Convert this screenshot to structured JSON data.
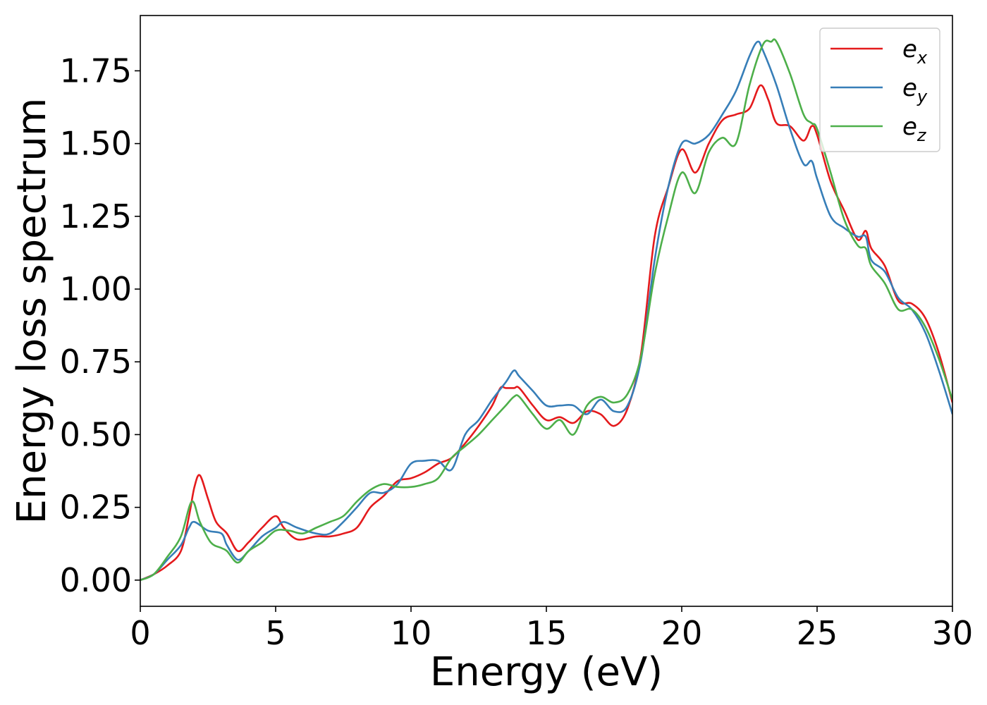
{
  "chart_data": {
    "type": "line",
    "xlabel": "Energy (eV)",
    "ylabel": "Energy loss spectrum",
    "xlim": [
      0,
      30
    ],
    "ylim": [
      -0.09,
      1.94
    ],
    "xticks": [
      0,
      5,
      10,
      15,
      20,
      25,
      30
    ],
    "xtick_labels": [
      "0",
      "5",
      "10",
      "15",
      "20",
      "25",
      "30"
    ],
    "yticks": [
      0,
      0.25,
      0.5,
      0.75,
      1.0,
      1.25,
      1.5,
      1.75
    ],
    "ytick_labels": [
      "0.00",
      "0.25",
      "0.50",
      "0.75",
      "1.00",
      "1.25",
      "1.50",
      "1.75"
    ],
    "grid": false,
    "legend_position": "top-right",
    "series": [
      {
        "name": "e_x",
        "legend_main": "e",
        "legend_sub": "x",
        "color": "#e41a1c",
        "x": [
          0,
          0.5,
          1.0,
          1.5,
          1.8,
          2.0,
          2.2,
          2.5,
          2.8,
          3.2,
          3.6,
          4.0,
          4.5,
          5.0,
          5.3,
          5.8,
          6.5,
          7.0,
          7.5,
          8.0,
          8.5,
          9.0,
          9.5,
          10.0,
          10.5,
          11.0,
          11.5,
          12.0,
          12.5,
          13.0,
          13.3,
          13.5,
          13.8,
          14.0,
          14.5,
          15.0,
          15.5,
          16.0,
          16.5,
          17.0,
          17.5,
          18.0,
          18.5,
          19.0,
          19.5,
          20.0,
          20.5,
          21.0,
          21.5,
          22.0,
          22.5,
          22.9,
          23.2,
          23.5,
          24.0,
          24.5,
          24.8,
          25.0,
          25.5,
          26.0,
          26.5,
          26.8,
          27.0,
          27.5,
          28.0,
          28.5,
          29.0,
          29.5,
          30.0
        ],
        "y": [
          0.0,
          0.02,
          0.05,
          0.1,
          0.22,
          0.32,
          0.36,
          0.28,
          0.2,
          0.16,
          0.1,
          0.13,
          0.18,
          0.22,
          0.18,
          0.14,
          0.15,
          0.15,
          0.16,
          0.18,
          0.25,
          0.29,
          0.34,
          0.35,
          0.37,
          0.4,
          0.42,
          0.47,
          0.53,
          0.6,
          0.66,
          0.66,
          0.66,
          0.66,
          0.6,
          0.55,
          0.56,
          0.54,
          0.58,
          0.57,
          0.53,
          0.59,
          0.78,
          1.18,
          1.35,
          1.48,
          1.4,
          1.5,
          1.58,
          1.6,
          1.62,
          1.7,
          1.65,
          1.57,
          1.56,
          1.51,
          1.56,
          1.53,
          1.37,
          1.27,
          1.17,
          1.2,
          1.14,
          1.08,
          0.96,
          0.95,
          0.9,
          0.78,
          0.61
        ]
      },
      {
        "name": "e_y",
        "legend_main": "e",
        "legend_sub": "y",
        "color": "#377eb8",
        "x": [
          0,
          0.5,
          1.0,
          1.5,
          1.8,
          2.0,
          2.5,
          3.0,
          3.2,
          3.6,
          4.0,
          4.5,
          5.0,
          5.3,
          5.8,
          6.5,
          7.0,
          7.5,
          8.0,
          8.5,
          9.0,
          9.5,
          10.0,
          10.5,
          11.0,
          11.5,
          12.0,
          12.5,
          13.0,
          13.5,
          13.8,
          14.0,
          14.5,
          15.0,
          15.5,
          16.0,
          16.5,
          17.0,
          17.5,
          18.0,
          18.5,
          19.0,
          19.5,
          20.0,
          20.5,
          21.0,
          21.5,
          22.0,
          22.5,
          22.8,
          23.0,
          23.5,
          24.0,
          24.5,
          24.8,
          25.0,
          25.5,
          26.0,
          26.5,
          26.8,
          27.0,
          27.5,
          28.0,
          28.5,
          29.0,
          29.5,
          30.0
        ],
        "y": [
          0.0,
          0.02,
          0.07,
          0.12,
          0.18,
          0.2,
          0.17,
          0.16,
          0.12,
          0.07,
          0.1,
          0.15,
          0.18,
          0.2,
          0.18,
          0.16,
          0.16,
          0.2,
          0.25,
          0.3,
          0.3,
          0.33,
          0.4,
          0.41,
          0.41,
          0.38,
          0.5,
          0.55,
          0.62,
          0.68,
          0.72,
          0.7,
          0.65,
          0.6,
          0.6,
          0.6,
          0.57,
          0.62,
          0.58,
          0.6,
          0.76,
          1.1,
          1.35,
          1.5,
          1.5,
          1.53,
          1.6,
          1.68,
          1.8,
          1.85,
          1.82,
          1.7,
          1.55,
          1.43,
          1.44,
          1.38,
          1.25,
          1.21,
          1.18,
          1.18,
          1.1,
          1.06,
          0.97,
          0.93,
          0.85,
          0.72,
          0.57
        ]
      },
      {
        "name": "e_z",
        "legend_main": "e",
        "legend_sub": "z",
        "color": "#4daf4a",
        "x": [
          0,
          0.5,
          1.0,
          1.5,
          1.9,
          2.2,
          2.6,
          3.0,
          3.2,
          3.6,
          4.0,
          4.5,
          5.0,
          5.5,
          6.0,
          6.5,
          7.0,
          7.5,
          8.0,
          8.5,
          9.0,
          9.5,
          10.0,
          10.5,
          11.0,
          11.5,
          12.0,
          12.5,
          13.0,
          13.5,
          13.8,
          14.0,
          14.5,
          15.0,
          15.5,
          16.0,
          16.5,
          17.0,
          17.5,
          18.0,
          18.5,
          19.0,
          19.5,
          20.0,
          20.5,
          21.0,
          21.5,
          22.0,
          22.5,
          23.0,
          23.3,
          23.5,
          24.0,
          24.5,
          24.8,
          25.0,
          25.5,
          26.0,
          26.5,
          26.8,
          27.0,
          27.5,
          28.0,
          28.5,
          29.0,
          29.5,
          30.0
        ],
        "y": [
          0.0,
          0.02,
          0.08,
          0.15,
          0.27,
          0.2,
          0.13,
          0.11,
          0.1,
          0.06,
          0.1,
          0.13,
          0.17,
          0.17,
          0.16,
          0.18,
          0.2,
          0.22,
          0.27,
          0.31,
          0.33,
          0.32,
          0.32,
          0.33,
          0.35,
          0.42,
          0.46,
          0.5,
          0.55,
          0.6,
          0.63,
          0.63,
          0.57,
          0.52,
          0.55,
          0.5,
          0.6,
          0.63,
          0.61,
          0.64,
          0.77,
          1.05,
          1.25,
          1.4,
          1.33,
          1.47,
          1.52,
          1.5,
          1.7,
          1.84,
          1.85,
          1.85,
          1.74,
          1.6,
          1.57,
          1.55,
          1.4,
          1.24,
          1.15,
          1.14,
          1.08,
          1.02,
          0.93,
          0.93,
          0.87,
          0.76,
          0.62
        ]
      }
    ]
  }
}
